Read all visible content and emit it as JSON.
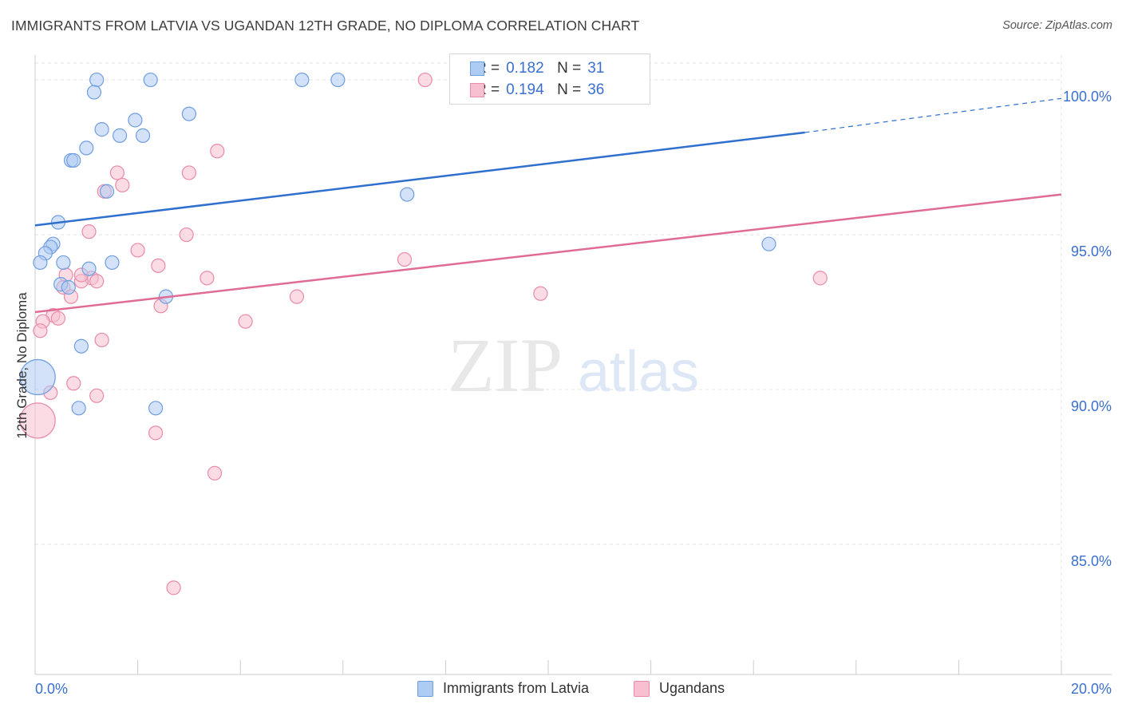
{
  "title": "IMMIGRANTS FROM LATVIA VS UGANDAN 12TH GRADE, NO DIPLOMA CORRELATION CHART",
  "source": "Source: ZipAtlas.com",
  "watermark": {
    "zip": "ZIP",
    "atlas": "atlas"
  },
  "colors": {
    "blue_fill": "#aecbf3",
    "blue_stroke": "#6f9ee0",
    "blue_line": "#2f6fce",
    "pink_fill": "#f8bfd0",
    "pink_stroke": "#e98aa8",
    "pink_line": "#e06b95",
    "axis_label": "#3a6fd0",
    "grid": "#e3e3e3"
  },
  "legend_stats": [
    {
      "r_label": "R =",
      "r_value": "0.182",
      "n_label": "N =",
      "n_value": "31"
    },
    {
      "r_label": "R =",
      "r_value": "0.194",
      "n_label": "N =",
      "n_value": "36"
    }
  ],
  "chart_data": {
    "type": "scatter",
    "title": "IMMIGRANTS FROM LATVIA VS UGANDAN 12TH GRADE, NO DIPLOMA CORRELATION CHART",
    "xlabel": "",
    "ylabel": "12th Grade, No Diploma",
    "xlim": [
      0,
      20
    ],
    "ylim": [
      80.8,
      100.8
    ],
    "x_tick_labels": [
      "0.0%",
      "20.0%"
    ],
    "y_ticks": [
      85,
      90,
      95,
      100
    ],
    "y_tick_labels": [
      "85.0%",
      "90.0%",
      "95.0%",
      "100.0%"
    ],
    "grid": true,
    "legend_position": "bottom",
    "series": [
      {
        "name": "Immigrants from Latvia",
        "r": 0.182,
        "n": 31,
        "trend": {
          "x": [
            0,
            15
          ],
          "y": [
            95.3,
            98.3
          ],
          "dashed_to_x": 20,
          "dashed_to_y": 99.4
        },
        "points": [
          {
            "x": 1.2,
            "y": 100.0
          },
          {
            "x": 2.25,
            "y": 100.0
          },
          {
            "x": 5.2,
            "y": 100.0
          },
          {
            "x": 5.9,
            "y": 100.0
          },
          {
            "x": 1.15,
            "y": 99.6
          },
          {
            "x": 3.0,
            "y": 98.9
          },
          {
            "x": 1.95,
            "y": 98.7
          },
          {
            "x": 1.3,
            "y": 98.4
          },
          {
            "x": 1.65,
            "y": 98.2
          },
          {
            "x": 2.1,
            "y": 98.2
          },
          {
            "x": 1.0,
            "y": 97.8
          },
          {
            "x": 0.7,
            "y": 97.4
          },
          {
            "x": 0.75,
            "y": 97.4
          },
          {
            "x": 1.4,
            "y": 96.4
          },
          {
            "x": 7.25,
            "y": 96.3
          },
          {
            "x": 0.45,
            "y": 95.4
          },
          {
            "x": 0.35,
            "y": 94.7
          },
          {
            "x": 14.3,
            "y": 94.7
          },
          {
            "x": 0.3,
            "y": 94.6
          },
          {
            "x": 0.2,
            "y": 94.4
          },
          {
            "x": 0.1,
            "y": 94.1
          },
          {
            "x": 0.55,
            "y": 94.1
          },
          {
            "x": 1.5,
            "y": 94.1
          },
          {
            "x": 1.05,
            "y": 93.9
          },
          {
            "x": 0.5,
            "y": 93.4
          },
          {
            "x": 0.65,
            "y": 93.3
          },
          {
            "x": 2.55,
            "y": 93.0
          },
          {
            "x": 0.9,
            "y": 91.4
          },
          {
            "x": 0.05,
            "y": 90.4,
            "size": "large"
          },
          {
            "x": 0.85,
            "y": 89.4
          },
          {
            "x": 2.35,
            "y": 89.4
          }
        ]
      },
      {
        "name": "Ugandans",
        "r": 0.194,
        "n": 36,
        "trend": {
          "x": [
            0,
            20
          ],
          "y": [
            92.5,
            96.3
          ]
        },
        "points": [
          {
            "x": 7.6,
            "y": 100.0
          },
          {
            "x": 3.55,
            "y": 97.7
          },
          {
            "x": 1.6,
            "y": 97.0
          },
          {
            "x": 3.0,
            "y": 97.0
          },
          {
            "x": 1.7,
            "y": 96.6
          },
          {
            "x": 1.35,
            "y": 96.4
          },
          {
            "x": 1.05,
            "y": 95.1
          },
          {
            "x": 2.95,
            "y": 95.0
          },
          {
            "x": 2.0,
            "y": 94.5
          },
          {
            "x": 7.2,
            "y": 94.2
          },
          {
            "x": 2.4,
            "y": 94.0
          },
          {
            "x": 0.6,
            "y": 93.7
          },
          {
            "x": 3.35,
            "y": 93.6
          },
          {
            "x": 15.3,
            "y": 93.6
          },
          {
            "x": 1.1,
            "y": 93.6
          },
          {
            "x": 0.9,
            "y": 93.5
          },
          {
            "x": 1.2,
            "y": 93.5
          },
          {
            "x": 0.55,
            "y": 93.3
          },
          {
            "x": 0.7,
            "y": 93.0
          },
          {
            "x": 5.1,
            "y": 93.0
          },
          {
            "x": 9.85,
            "y": 93.1
          },
          {
            "x": 2.45,
            "y": 92.7
          },
          {
            "x": 0.35,
            "y": 92.4
          },
          {
            "x": 0.45,
            "y": 92.3
          },
          {
            "x": 4.1,
            "y": 92.2
          },
          {
            "x": 0.15,
            "y": 92.2
          },
          {
            "x": 0.1,
            "y": 91.9
          },
          {
            "x": 1.3,
            "y": 91.6
          },
          {
            "x": 0.75,
            "y": 90.2
          },
          {
            "x": 0.3,
            "y": 89.9
          },
          {
            "x": 1.2,
            "y": 89.8
          },
          {
            "x": 0.05,
            "y": 89.0,
            "size": "large"
          },
          {
            "x": 2.35,
            "y": 88.6
          },
          {
            "x": 3.5,
            "y": 87.3
          },
          {
            "x": 2.7,
            "y": 83.6
          },
          {
            "x": 0.9,
            "y": 93.7
          }
        ]
      }
    ]
  }
}
